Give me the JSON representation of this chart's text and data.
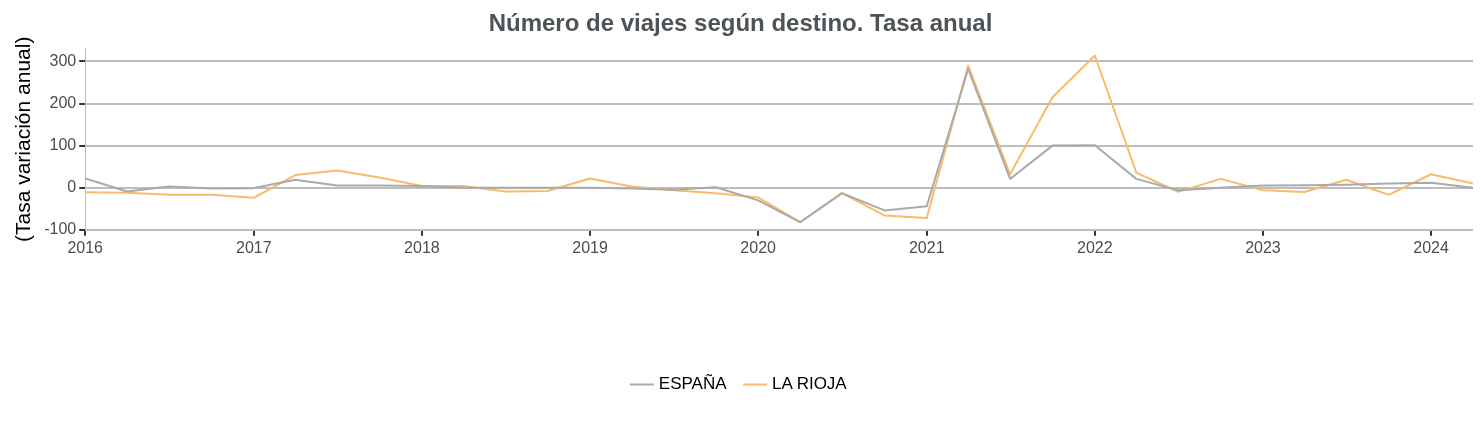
{
  "chart_data": {
    "type": "line",
    "title": "Número de viajes según destino. Tasa anual",
    "ylabel": "(Tasa variación anual)",
    "x": [
      "2016-01",
      "2016-04",
      "2016-07",
      "2016-10",
      "2017-01",
      "2017-04",
      "2017-07",
      "2017-10",
      "2018-01",
      "2018-04",
      "2018-07",
      "2018-10",
      "2019-01",
      "2019-04",
      "2019-07",
      "2019-10",
      "2020-01",
      "2020-04",
      "2020-07",
      "2020-10",
      "2021-01",
      "2021-04",
      "2021-07",
      "2021-10",
      "2022-01",
      "2022-04",
      "2022-07",
      "2022-10",
      "2023-01",
      "2023-04",
      "2023-07",
      "2023-10",
      "2024-01",
      "2024-04"
    ],
    "series": [
      {
        "name": "ESPAÑA",
        "color": "#aaaaaa",
        "values": [
          22,
          -9,
          3,
          -2,
          -1,
          19,
          5,
          5,
          4,
          0,
          0,
          0,
          0,
          -2,
          -5,
          1,
          -30,
          -82,
          -13,
          -54,
          -44,
          282,
          21,
          100,
          101,
          21,
          -6,
          0,
          5,
          6,
          7,
          10,
          12,
          0
        ]
      },
      {
        "name": "LA RIOJA",
        "color": "#f8bb6a",
        "values": [
          -11,
          -12,
          -17,
          -17,
          -24,
          30,
          41,
          24,
          4,
          4,
          -9,
          -8,
          22,
          3,
          -6,
          -13,
          -23,
          -82,
          -13,
          -66,
          -72,
          290,
          32,
          215,
          314,
          36,
          -10,
          21,
          -6,
          -10,
          19,
          -17,
          32,
          10
        ]
      }
    ],
    "xlim": [
      "2016-01",
      "2024-04"
    ],
    "xticks": [
      "2016",
      "2017",
      "2018",
      "2019",
      "2020",
      "2021",
      "2022",
      "2023",
      "2024"
    ],
    "ylim": [
      -100,
      330
    ],
    "yticks": [
      -100,
      0,
      100,
      200,
      300
    ],
    "grid": "y",
    "legend": "bottom"
  }
}
